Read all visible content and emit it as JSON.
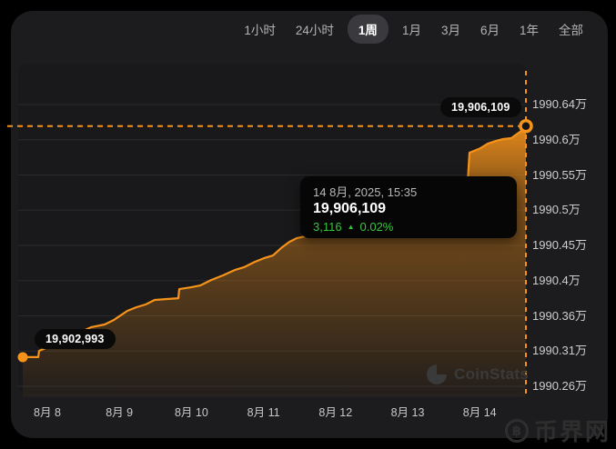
{
  "timeframe_tabs": {
    "items": [
      "1小时",
      "24小时",
      "1周",
      "1月",
      "3月",
      "6月",
      "1年",
      "全部"
    ],
    "selected": "1周"
  },
  "y_axis_labels": [
    "1990.64万",
    "1990.6万",
    "1990.55万",
    "1990.5万",
    "1990.45万",
    "1990.4万",
    "1990.36万",
    "1990.31万",
    "1990.26万"
  ],
  "x_axis_labels": [
    "8月 8",
    "8月 9",
    "8月 10",
    "8月 11",
    "8月 12",
    "8月 13",
    "8月 14"
  ],
  "tooltip": {
    "datetime": "14 8月, 2025, 15:35",
    "value": "19,906,109",
    "change_value": "3,116",
    "change_arrow": "▲",
    "change_percent": "0.02%"
  },
  "annotations": {
    "current_value_label": "19,906,109",
    "start_value_label": "19,902,993"
  },
  "watermark": {
    "name": "CoinStats"
  },
  "site_badge": {
    "coin_symbol": "฿",
    "text": "币界网"
  },
  "colors": {
    "accent": "#F7931A",
    "positive": "#35C53B",
    "page_bg": "#000000",
    "card_bg": "#1C1C1E",
    "plot_bg": "#19191B",
    "grid": "#2A2A2C",
    "tooltip_bg": "#060606",
    "pill_bg": "#0A0A0A"
  },
  "chart_data": {
    "type": "area",
    "title": "",
    "x_categories": [
      "8月 8",
      "8月 9",
      "8月 10",
      "8月 11",
      "8月 12",
      "8月 13",
      "8月 14"
    ],
    "ylim": [
      19902600,
      19906400
    ],
    "start_value": 19902993,
    "end_value": 19906109,
    "change_value": 3116,
    "change_percent": 0.02,
    "grid": true,
    "legend": false,
    "points_x_fraction_value": [
      [
        0.009,
        19902993
      ],
      [
        0.0394,
        19902993
      ],
      [
        0.0412,
        19903078
      ],
      [
        0.0627,
        19903139
      ],
      [
        0.0896,
        19903225
      ],
      [
        0.1165,
        19903311
      ],
      [
        0.1434,
        19903396
      ],
      [
        0.1703,
        19903433
      ],
      [
        0.1882,
        19903494
      ],
      [
        0.2151,
        19903617
      ],
      [
        0.233,
        19903666
      ],
      [
        0.2509,
        19903703
      ],
      [
        0.2688,
        19903764
      ],
      [
        0.2903,
        19903776
      ],
      [
        0.3154,
        19903788
      ],
      [
        0.3172,
        19903911
      ],
      [
        0.3405,
        19903935
      ],
      [
        0.3584,
        19903960
      ],
      [
        0.3799,
        19904033
      ],
      [
        0.4032,
        19904095
      ],
      [
        0.4265,
        19904168
      ],
      [
        0.4444,
        19904205
      ],
      [
        0.4659,
        19904278
      ],
      [
        0.4839,
        19904327
      ],
      [
        0.5018,
        19904364
      ],
      [
        0.5197,
        19904474
      ],
      [
        0.5341,
        19904548
      ],
      [
        0.5484,
        19904597
      ],
      [
        0.5735,
        19904634
      ],
      [
        0.6093,
        19904658
      ],
      [
        0.6452,
        19904683
      ],
      [
        0.681,
        19904707
      ],
      [
        0.7348,
        19904731
      ],
      [
        0.7885,
        19904744
      ],
      [
        0.8423,
        19904756
      ],
      [
        0.8817,
        19904768
      ],
      [
        0.8853,
        19905358
      ],
      [
        0.8889,
        19905750
      ],
      [
        0.8961,
        19905770
      ],
      [
        0.9104,
        19905811
      ],
      [
        0.9247,
        19905872
      ],
      [
        0.9409,
        19905909
      ],
      [
        0.9552,
        19905934
      ],
      [
        0.9713,
        19905946
      ],
      [
        0.9785,
        19905983
      ],
      [
        0.9857,
        19906019
      ],
      [
        0.9946,
        19906056
      ],
      [
        1.0,
        19906109
      ]
    ]
  }
}
